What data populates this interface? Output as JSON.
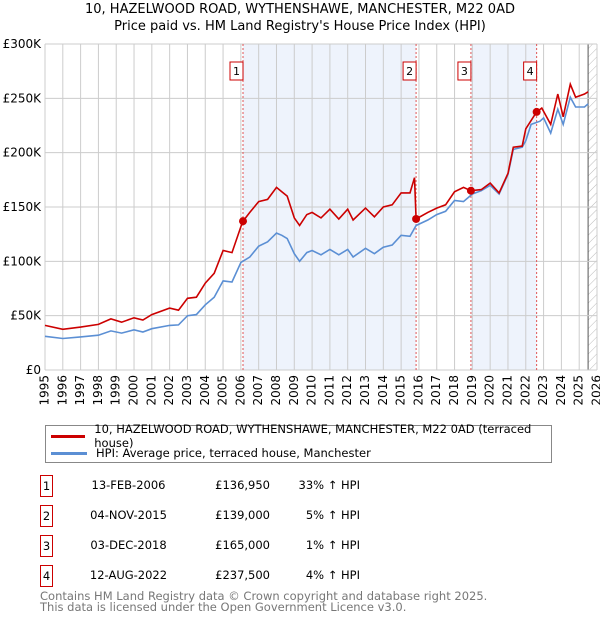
{
  "chart_data": {
    "type": "line",
    "title": "10, HAZELWOOD ROAD, WYTHENSHAWE, MANCHESTER, M22 0AD",
    "subtitle": "Price paid vs. HM Land Registry's House Price Index (HPI)",
    "xlim": [
      1995,
      2026
    ],
    "ylim": [
      0,
      300000
    ],
    "x_ticks": [
      "1995",
      "1996",
      "1997",
      "1998",
      "1999",
      "2000",
      "2001",
      "2002",
      "2003",
      "2004",
      "2005",
      "2006",
      "2007",
      "2008",
      "2009",
      "2010",
      "2011",
      "2012",
      "2013",
      "2014",
      "2015",
      "2016",
      "2017",
      "2018",
      "2019",
      "2020",
      "2021",
      "2022",
      "2023",
      "2024",
      "2025",
      "2026"
    ],
    "y_ticks": [
      {
        "v": 0,
        "label": "£0"
      },
      {
        "v": 50000,
        "label": "£50K"
      },
      {
        "v": 100000,
        "label": "£100K"
      },
      {
        "v": 150000,
        "label": "£150K"
      },
      {
        "v": 200000,
        "label": "£200K"
      },
      {
        "v": 250000,
        "label": "£250K"
      },
      {
        "v": 300000,
        "label": "£300K"
      }
    ],
    "grid": true,
    "shaded_ranges": [
      [
        2006.12,
        2015.84
      ],
      [
        2018.92,
        2022.61
      ]
    ],
    "hatched_from": 2025.5,
    "series": [
      {
        "name": "10, HAZELWOOD ROAD, WYTHENSHAWE, MANCHESTER, M22 0AD (terraced house)",
        "color": "#cc0000",
        "x": [
          1995,
          1996,
          1997,
          1998,
          1998.7,
          1999.3,
          2000,
          2000.5,
          2001,
          2002,
          2002.5,
          2003,
          2003.5,
          2004,
          2004.5,
          2005,
          2005.5,
          2006,
          2006.12,
          2006.5,
          2007,
          2007.5,
          2008,
          2008.3,
          2008.6,
          2009,
          2009.3,
          2009.7,
          2010,
          2010.5,
          2011,
          2011.5,
          2012,
          2012.3,
          2013,
          2013.5,
          2014,
          2014.5,
          2015,
          2015.5,
          2015.75,
          2015.84,
          2016.5,
          2017,
          2017.5,
          2018,
          2018.5,
          2018.92,
          2019.5,
          2020,
          2020.5,
          2021,
          2021.3,
          2021.8,
          2022,
          2022.61,
          2022.9,
          2023.4,
          2023.8,
          2024.1,
          2024.5,
          2024.8,
          2025.3,
          2025.5
        ],
        "y": [
          41000,
          37500,
          39500,
          42000,
          47000,
          44000,
          48000,
          46000,
          51000,
          57000,
          55000,
          66000,
          67000,
          80000,
          89000,
          110000,
          108000,
          132000,
          136950,
          145000,
          155000,
          157000,
          168000,
          164000,
          160000,
          140000,
          133000,
          143000,
          145000,
          140000,
          148000,
          139000,
          148000,
          138000,
          149000,
          141000,
          150000,
          152000,
          163000,
          163000,
          177000,
          139000,
          145000,
          149000,
          152000,
          164000,
          168000,
          165000,
          166000,
          172000,
          163000,
          181000,
          205000,
          206000,
          222000,
          237500,
          241000,
          226000,
          254000,
          233000,
          263000,
          251000,
          254000,
          256000
        ]
      },
      {
        "name": "HPI: Average price, terraced house, Manchester",
        "color": "#5b8fd4",
        "x": [
          1995,
          1996,
          1997,
          1998,
          1998.7,
          1999.3,
          2000,
          2000.5,
          2001,
          2002,
          2002.5,
          2003,
          2003.5,
          2004,
          2004.5,
          2005,
          2005.5,
          2006,
          2006.5,
          2007,
          2007.5,
          2008,
          2008.3,
          2008.6,
          2009,
          2009.3,
          2009.7,
          2010,
          2010.5,
          2011,
          2011.5,
          2012,
          2012.3,
          2013,
          2013.5,
          2014,
          2014.5,
          2015,
          2015.5,
          2015.84,
          2016.5,
          2017,
          2017.5,
          2018,
          2018.5,
          2019,
          2019.5,
          2020,
          2020.5,
          2021,
          2021.3,
          2021.8,
          2022,
          2022.3,
          2022.8,
          2023,
          2023.4,
          2023.8,
          2024.1,
          2024.5,
          2024.8,
          2025.3,
          2025.5
        ],
        "y": [
          31000,
          29000,
          30500,
          32000,
          36000,
          34000,
          37000,
          35000,
          38000,
          41000,
          41500,
          50000,
          51000,
          60000,
          67000,
          82000,
          81000,
          99000,
          104000,
          114000,
          118000,
          126000,
          124000,
          121000,
          107000,
          100000,
          108000,
          110000,
          106000,
          111000,
          106000,
          111000,
          104000,
          112000,
          107000,
          113000,
          115000,
          124000,
          123000,
          133000,
          138000,
          143000,
          146000,
          156000,
          155000,
          162000,
          165000,
          170000,
          162000,
          180000,
          203000,
          205000,
          211000,
          226000,
          229000,
          232000,
          218000,
          240000,
          226000,
          251000,
          242000,
          242000,
          245000
        ]
      }
    ],
    "sales": [
      {
        "num": "1",
        "x": 2006.12,
        "price": 136950
      },
      {
        "num": "2",
        "x": 2015.84,
        "price": 139000
      },
      {
        "num": "3",
        "x": 2018.92,
        "price": 165000
      },
      {
        "num": "4",
        "x": 2022.61,
        "price": 237500
      }
    ]
  },
  "header": {
    "title": "10, HAZELWOOD ROAD, WYTHENSHAWE, MANCHESTER, M22 0AD",
    "subtitle": "Price paid vs. HM Land Registry's House Price Index (HPI)"
  },
  "legend": {
    "red_label": "10, HAZELWOOD ROAD, WYTHENSHAWE, MANCHESTER, M22 0AD (terraced house)",
    "blue_label": "HPI: Average price, terraced house, Manchester"
  },
  "transactions": [
    {
      "num": "1",
      "date": "13-FEB-2006",
      "price": "£136,950",
      "hpi": "33% ↑ HPI"
    },
    {
      "num": "2",
      "date": "04-NOV-2015",
      "price": "£139,000",
      "hpi": "5% ↑ HPI"
    },
    {
      "num": "3",
      "date": "03-DEC-2018",
      "price": "£165,000",
      "hpi": "1% ↑ HPI"
    },
    {
      "num": "4",
      "date": "12-AUG-2022",
      "price": "£237,500",
      "hpi": "4% ↑ HPI"
    }
  ],
  "footer": {
    "line1": "Contains HM Land Registry data © Crown copyright and database right 2025.",
    "line2": "This data is licensed under the Open Government Licence v3.0."
  }
}
